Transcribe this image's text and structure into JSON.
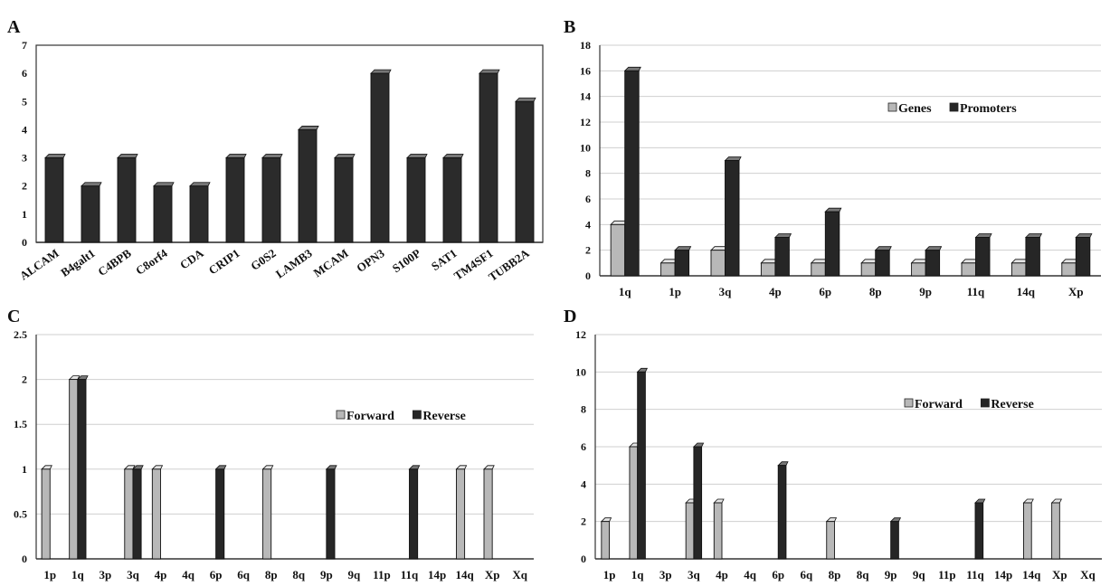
{
  "chart_data": [
    {
      "panel": "A",
      "type": "bar",
      "categories": [
        "ALCAM",
        "B4galt1",
        "C4BPB",
        "C8orf4",
        "CDA",
        "CRIP1",
        "G0S2",
        "LAMB3",
        "MCAM",
        "OPN3",
        "S100P",
        "SAT1",
        "TM4SF1",
        "TUBB2A"
      ],
      "series": [
        {
          "values": [
            3,
            2,
            3,
            2,
            2,
            3,
            3,
            4,
            3,
            6,
            3,
            3,
            6,
            5
          ],
          "color": "#2b2b2b"
        }
      ],
      "ylim": [
        0,
        7
      ],
      "yticks": [
        "0",
        "1",
        "2",
        "3",
        "4",
        "5",
        "6",
        "7"
      ],
      "grid": false,
      "legend": null
    },
    {
      "panel": "B",
      "type": "bar",
      "categories": [
        "1q",
        "1p",
        "3q",
        "4p",
        "6p",
        "8p",
        "9p",
        "11q",
        "14q",
        "Xp"
      ],
      "series": [
        {
          "name": "Genes",
          "values": [
            4,
            1,
            2,
            1,
            1,
            1,
            1,
            1,
            1,
            1
          ],
          "color": "#b8b8b8"
        },
        {
          "name": "Promoters",
          "values": [
            16,
            2,
            9,
            3,
            5,
            2,
            2,
            3,
            3,
            3
          ],
          "color": "#262626"
        }
      ],
      "ylim": [
        0,
        18
      ],
      "yticks": [
        "0",
        "2",
        "4",
        "6",
        "8",
        "10",
        "12",
        "14",
        "16",
        "18"
      ],
      "grid": true,
      "legend": "upper-right"
    },
    {
      "panel": "C",
      "type": "bar",
      "categories": [
        "1p",
        "1q",
        "3p",
        "3q",
        "4p",
        "4q",
        "6p",
        "6q",
        "8p",
        "8q",
        "9p",
        "9q",
        "11p",
        "11q",
        "14p",
        "14q",
        "Xp",
        "Xq"
      ],
      "series": [
        {
          "name": "Forward",
          "values": [
            1,
            2,
            0,
            1,
            1,
            0,
            0,
            0,
            1,
            0,
            0,
            0,
            0,
            0,
            0,
            1,
            1,
            0
          ],
          "color": "#b8b8b8"
        },
        {
          "name": "Reverse",
          "values": [
            0,
            2,
            0,
            1,
            0,
            0,
            1,
            0,
            0,
            0,
            1,
            0,
            0,
            1,
            0,
            0,
            0,
            0
          ],
          "color": "#262626"
        }
      ],
      "ylim": [
        0,
        2.5
      ],
      "yticks": [
        "0",
        "0.5",
        "1",
        "1.5",
        "2",
        "2.5"
      ],
      "grid": true,
      "legend": "upper-right"
    },
    {
      "panel": "D",
      "type": "bar",
      "categories": [
        "1p",
        "1q",
        "3p",
        "3q",
        "4p",
        "4q",
        "6p",
        "6q",
        "8p",
        "8q",
        "9p",
        "9q",
        "11p",
        "11q",
        "14p",
        "14q",
        "Xp",
        "Xq"
      ],
      "series": [
        {
          "name": "Forward",
          "values": [
            2,
            6,
            0,
            3,
            3,
            0,
            0,
            0,
            2,
            0,
            0,
            0,
            0,
            0,
            0,
            3,
            3,
            0
          ],
          "color": "#b8b8b8"
        },
        {
          "name": "Reverse",
          "values": [
            0,
            10,
            0,
            6,
            0,
            0,
            5,
            0,
            0,
            0,
            2,
            0,
            0,
            3,
            0,
            0,
            0,
            0
          ],
          "color": "#262626"
        }
      ],
      "ylim": [
        0,
        12
      ],
      "yticks": [
        "0",
        "2",
        "4",
        "6",
        "8",
        "10",
        "12"
      ],
      "grid": true,
      "legend": "upper-right"
    }
  ]
}
